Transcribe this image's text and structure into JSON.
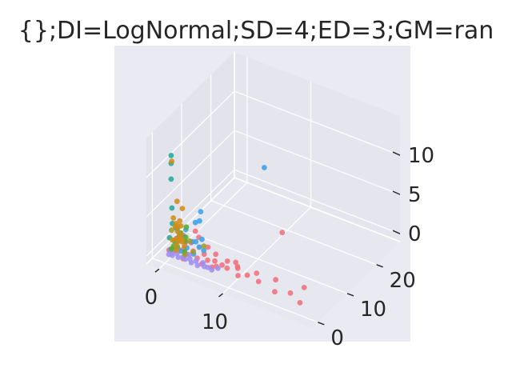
{
  "chart_data": {
    "type": "scatter3d",
    "title": "{};DI=LogNormal;SD=4;ED=3;GM=ran",
    "xlabel": "",
    "ylabel": "",
    "zlabel": "",
    "xticks": [
      "0",
      "10"
    ],
    "yticks": [
      "0",
      "10",
      "20"
    ],
    "zticks": [
      "0",
      "5",
      "10"
    ],
    "xlim": [
      -2,
      24
    ],
    "ylim": [
      -2,
      28
    ],
    "zlim": [
      -1,
      15
    ],
    "grid": true,
    "legend": "none",
    "colors": {
      "figure_bg": "#ffffff",
      "axes_bg": "#eaeaf2",
      "pane_left": "#e3e3ec",
      "pane_back": "#e5e5ee",
      "pane_floor": "#e7e7ef",
      "grid": "#ffffff",
      "text": "#262626"
    },
    "series": [
      {
        "color": "#f0717f",
        "points": [
          [
            14,
            1.5,
            0.5
          ],
          [
            17,
            0.5,
            0.5
          ],
          [
            19,
            1.5,
            0.6
          ],
          [
            21,
            0.4,
            0.4
          ],
          [
            20,
            4,
            0.7
          ],
          [
            16,
            3,
            0.8
          ],
          [
            12,
            2,
            0.5
          ],
          [
            11,
            1,
            0.5
          ],
          [
            10,
            3,
            0.6
          ],
          [
            9,
            1.6,
            0.6
          ],
          [
            8,
            2.1,
            0.5
          ],
          [
            7,
            0.8,
            0.4
          ],
          [
            6,
            1.5,
            0.7
          ],
          [
            5,
            2.5,
            0.8
          ],
          [
            4.5,
            1.2,
            0.6
          ],
          [
            4,
            3,
            1.2
          ],
          [
            3.5,
            2,
            0.9
          ],
          [
            3,
            1,
            0.7
          ],
          [
            2.5,
            3.5,
            1.1
          ],
          [
            2,
            2.2,
            0.8
          ],
          [
            1.5,
            1.6,
            0.6
          ],
          [
            1,
            4,
            1.4
          ],
          [
            0.8,
            1.1,
            0.5
          ],
          [
            0.5,
            2.8,
            1.3
          ],
          [
            0.3,
            0.7,
            0.5
          ],
          [
            6.5,
            3.2,
            1.0
          ],
          [
            7.5,
            1.2,
            0.5
          ],
          [
            8.5,
            2.8,
            0.9
          ],
          [
            13,
            3,
            0.7
          ],
          [
            5.5,
            0.6,
            0.4
          ],
          [
            9.5,
            3.5,
            0.8
          ],
          [
            10.5,
            2,
            0.9
          ],
          [
            3,
            5,
            1.4
          ],
          [
            2,
            6,
            1.5
          ],
          [
            11.5,
            15,
            1.0
          ],
          [
            2.7,
            0.3,
            0.3
          ],
          [
            4.8,
            4.2,
            1.0
          ],
          [
            1.8,
            3.1,
            1.1
          ],
          [
            6.8,
            2.2,
            0.6
          ]
        ]
      },
      {
        "color": "#3ba3ec",
        "points": [
          [
            5,
            23,
            4.3
          ],
          [
            1,
            10,
            2.2
          ],
          [
            2,
            6,
            2.6
          ],
          [
            1.5,
            3,
            1.7
          ],
          [
            3,
            4,
            1.2
          ],
          [
            2.5,
            2,
            1.0
          ],
          [
            4,
            3,
            1.2
          ],
          [
            3.5,
            5,
            1.3
          ],
          [
            1.2,
            4.5,
            2.0
          ],
          [
            2.2,
            7,
            2.5
          ],
          [
            0.7,
            2.2,
            1.0
          ],
          [
            3.8,
            1.5,
            0.8
          ],
          [
            4.8,
            2.8,
            1.1
          ],
          [
            2.8,
            3.3,
            1.4
          ],
          [
            1.9,
            1.2,
            0.7
          ]
        ]
      },
      {
        "color": "#9f8ef4",
        "points": [
          [
            0.5,
            0.2,
            0.2
          ],
          [
            1,
            0.3,
            0.2
          ],
          [
            2,
            0.2,
            0.3
          ],
          [
            3,
            0.4,
            0.3
          ],
          [
            4,
            0.3,
            0.2
          ],
          [
            5,
            0.2,
            0.2
          ],
          [
            6,
            0.4,
            0.3
          ],
          [
            1.5,
            0.8,
            0.4
          ],
          [
            2.5,
            0.7,
            0.3
          ],
          [
            3.5,
            0.9,
            0.3
          ],
          [
            0.8,
            0.6,
            0.3
          ],
          [
            4.5,
            0.8,
            0.4
          ],
          [
            5.5,
            1.0,
            0.4
          ],
          [
            6.5,
            0.5,
            0.3
          ],
          [
            1.2,
            1.4,
            0.5
          ],
          [
            2.2,
            1.6,
            0.5
          ],
          [
            3.2,
            1.3,
            0.6
          ],
          [
            0.3,
            1.0,
            0.4
          ],
          [
            7.2,
            0.3,
            0.3
          ],
          [
            7.8,
            1.1,
            0.4
          ]
        ]
      },
      {
        "color": "#50b131",
        "points": [
          [
            0.5,
            2,
            1.3
          ],
          [
            1,
            3,
            2.0
          ],
          [
            1.5,
            4,
            2.6
          ],
          [
            0.8,
            1.2,
            1.0
          ],
          [
            2,
            2.5,
            1.5
          ],
          [
            0.3,
            3.5,
            2.2
          ],
          [
            1.2,
            2,
            1.5
          ],
          [
            2.5,
            1.2,
            0.8
          ],
          [
            0.6,
            0.8,
            0.7
          ],
          [
            1.8,
            3.2,
            1.7
          ]
        ]
      },
      {
        "color": "#22aa9a",
        "points": [
          [
            0.5,
            1,
            12.5
          ],
          [
            0.5,
            1,
            11.5
          ],
          [
            0.5,
            1,
            9.5
          ],
          [
            0.4,
            1.5,
            5.6
          ],
          [
            0.6,
            1.2,
            3.8
          ],
          [
            0.8,
            2.0,
            3.0
          ],
          [
            0.3,
            0.9,
            2.0
          ],
          [
            1.1,
            2.4,
            1.8
          ]
        ]
      },
      {
        "color": "#d28c19",
        "points": [
          [
            0.6,
            1,
            11.8
          ],
          [
            1.2,
            1.5,
            6.7
          ],
          [
            1.8,
            2,
            5.8
          ],
          [
            0.8,
            1.1,
            4.6
          ],
          [
            1.5,
            1.8,
            4.2
          ],
          [
            1.0,
            1.5,
            3.8
          ],
          [
            1.2,
            1.7,
            3.5
          ],
          [
            0.7,
            2.0,
            3.1
          ],
          [
            1.6,
            1.3,
            2.8
          ],
          [
            0.9,
            2.3,
            2.5
          ],
          [
            1.4,
            0.8,
            2.2
          ],
          [
            2.0,
            1.6,
            2.0
          ],
          [
            1.1,
            2.6,
            1.8
          ],
          [
            0.5,
            1.4,
            1.6
          ],
          [
            1.7,
            2.1,
            1.5
          ],
          [
            1.3,
            1.0,
            1.3
          ],
          [
            2.2,
            1.9,
            1.2
          ],
          [
            0.8,
            2.8,
            1.0
          ],
          [
            1.5,
            0.6,
            0.9
          ],
          [
            1.0,
            1.8,
            0.8
          ],
          [
            1.9,
            1.2,
            2.6
          ],
          [
            1.4,
            2.4,
            3.3
          ]
        ]
      },
      {
        "color": "#9c9e2e",
        "points": [
          [
            0.2,
            1.8,
            2.6
          ],
          [
            1.5,
            1,
            1.2
          ],
          [
            2.5,
            3,
            1.5
          ],
          [
            3.5,
            2,
            0.8
          ],
          [
            4.5,
            3.5,
            1.3
          ],
          [
            2.8,
            0.7,
            0.7
          ],
          [
            0.9,
            3.4,
            1.9
          ]
        ]
      }
    ]
  }
}
